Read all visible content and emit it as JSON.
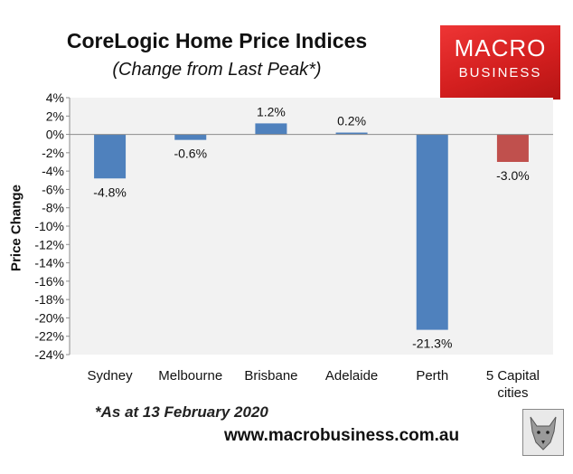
{
  "header": {
    "title": "CoreLogic Home Price Indices",
    "subtitle": "(Change from Last Peak*)"
  },
  "logo": {
    "line1": "MACRO",
    "line2": "BUSINESS"
  },
  "footer": {
    "note": "*As at 13 February 2020",
    "url": "www.macrobusiness.com.au"
  },
  "colors": {
    "bar_primary": "#4f81bd",
    "bar_highlight": "#c0504d",
    "plot_background": "#f2f2f2",
    "logo_red": "#e02a2a"
  },
  "chart_data": {
    "type": "bar",
    "title": "CoreLogic Home Price Indices",
    "subtitle": "(Change from Last Peak*)",
    "xlabel": "",
    "ylabel": "Price Change",
    "ylim": [
      -24,
      4
    ],
    "ytick_step": 2,
    "yticks": [
      "4%",
      "2%",
      "0%",
      "-2%",
      "-4%",
      "-6%",
      "-8%",
      "-10%",
      "-12%",
      "-14%",
      "-16%",
      "-18%",
      "-20%",
      "-22%",
      "-24%"
    ],
    "categories": [
      [
        "Sydney"
      ],
      [
        "Melbourne"
      ],
      [
        "Brisbane"
      ],
      [
        "Adelaide"
      ],
      [
        "Perth"
      ],
      [
        "5 Capital",
        "cities"
      ]
    ],
    "values": [
      -4.8,
      -0.6,
      1.2,
      0.2,
      -21.3,
      -3.0
    ],
    "data_labels": [
      "-4.8%",
      "-0.6%",
      "1.2%",
      "0.2%",
      "-21.3%",
      "-3.0%"
    ],
    "bar_colors": [
      "#4f81bd",
      "#4f81bd",
      "#4f81bd",
      "#4f81bd",
      "#4f81bd",
      "#c0504d"
    ],
    "grid": false,
    "legend": "none"
  }
}
